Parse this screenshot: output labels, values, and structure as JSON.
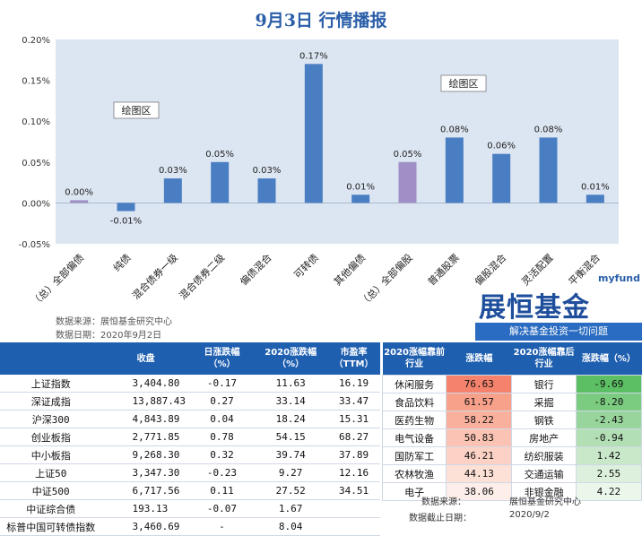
{
  "title": "9月3日  行情播报",
  "chart_data": {
    "type": "bar",
    "categories": [
      "（总）全部偏债",
      "纯债",
      "混合债券一级",
      "混合债券二级",
      "偏债混合",
      "可转债",
      "其他偏债",
      "（总）全部偏股",
      "普通股票",
      "偏股混合",
      "灵活配置",
      "平衡混合"
    ],
    "values": [
      0.0,
      -0.01,
      0.03,
      0.05,
      0.03,
      0.17,
      0.01,
      0.05,
      0.08,
      0.06,
      0.08,
      0.01
    ],
    "labels": [
      "0.00%",
      "-0.01%",
      "0.03%",
      "0.05%",
      "0.03%",
      "0.17%",
      "0.01%",
      "0.05%",
      "0.08%",
      "0.06%",
      "0.08%",
      "0.01%"
    ],
    "highlight": [
      0,
      7
    ],
    "ylim": [
      -0.05,
      0.2
    ],
    "yticks": [
      "0.20%",
      "0.15%",
      "0.10%",
      "0.05%",
      "0.00%",
      "-0.05%"
    ],
    "ytick_values": [
      0.2,
      0.15,
      0.1,
      0.05,
      0.0,
      -0.05
    ],
    "annotations": [
      "绘图区",
      "绘图区"
    ],
    "colors": {
      "bar": "#4a7ec2",
      "highlight": "#a08fc6",
      "plot_bg": "#dce6f2"
    }
  },
  "source": {
    "line1": "数据来源：展恒基金研究中心",
    "line2": "数据日期：2020年9月2日"
  },
  "logo": {
    "myfund": "myfund",
    "main": "展恒基金",
    "slogan": "解决基金投资一切问题"
  },
  "left_table": {
    "headers": [
      "",
      "收盘",
      "日涨跌幅\n（%）",
      "2020涨跌幅\n（%）",
      "市盈率\n（TTM）"
    ],
    "rows": [
      {
        "name": "上证指数",
        "close": "3,404.80",
        "day": "-0.17",
        "ytd": "11.63",
        "pe": "16.19",
        "dir": "down"
      },
      {
        "name": "深证成指",
        "close": "13,887.43",
        "day": "0.27",
        "ytd": "33.14",
        "pe": "33.47",
        "dir": "up"
      },
      {
        "name": "沪深300",
        "close": "4,843.89",
        "day": "0.04",
        "ytd": "18.24",
        "pe": "15.31",
        "dir": "up"
      },
      {
        "name": "创业板指",
        "close": "2,771.85",
        "day": "0.78",
        "ytd": "54.15",
        "pe": "68.27",
        "dir": "up"
      },
      {
        "name": "中小板指",
        "close": "9,268.30",
        "day": "0.32",
        "ytd": "39.74",
        "pe": "37.89",
        "dir": "up"
      },
      {
        "name": "上证50",
        "close": "3,347.30",
        "day": "-0.23",
        "ytd": "9.27",
        "pe": "12.16",
        "dir": "down"
      },
      {
        "name": "中证500",
        "close": "6,717.56",
        "day": "0.11",
        "ytd": "27.52",
        "pe": "34.51",
        "dir": "up"
      },
      {
        "name": "中证综合债",
        "close": "193.13",
        "day": "-0.07",
        "ytd": "1.67",
        "pe": "",
        "dir": "down"
      },
      {
        "name": "标普中国可转债指数",
        "close": "3,460.69",
        "day": "-",
        "ytd": "8.04",
        "pe": "",
        "dir": "none"
      }
    ]
  },
  "right_table": {
    "headers": [
      "2020涨幅靠前\n行业",
      "涨跌幅",
      "2020涨幅靠后\n行业",
      "涨跌幅（%）"
    ],
    "rows": [
      {
        "top": "休闲服务",
        "top_val": "76.63",
        "bot": "银行",
        "bot_val": "-9.69"
      },
      {
        "top": "食品饮料",
        "top_val": "61.57",
        "bot": "采掘",
        "bot_val": "-8.20"
      },
      {
        "top": "医药生物",
        "top_val": "58.22",
        "bot": "钢铁",
        "bot_val": "-2.43"
      },
      {
        "top": "电气设备",
        "top_val": "50.83",
        "bot": "房地产",
        "bot_val": "-0.94"
      },
      {
        "top": "国防军工",
        "top_val": "46.21",
        "bot": "纺织服装",
        "bot_val": "1.42"
      },
      {
        "top": "农林牧渔",
        "top_val": "44.13",
        "bot": "交通运输",
        "bot_val": "2.55"
      },
      {
        "top": "电子",
        "top_val": "38.06",
        "bot": "非银金融",
        "bot_val": "4.22"
      }
    ],
    "top_colors": [
      "#f4826c",
      "#f7a08a",
      "#f9b19e",
      "#fbc3b3",
      "#fbd2c5",
      "#fde0d6",
      "#fdeee9"
    ],
    "bot_colors": [
      "#5cbf63",
      "#7bcb80",
      "#98d59c",
      "#b3dfb5",
      "#c9e8ca",
      "#dcf0dd",
      "#ecf7ec"
    ]
  },
  "footer": {
    "src_label": "数据来源：",
    "src_value": "展恒基金研究中心",
    "date_label": "数据截止日期：",
    "date_value": "2020/9/2"
  }
}
